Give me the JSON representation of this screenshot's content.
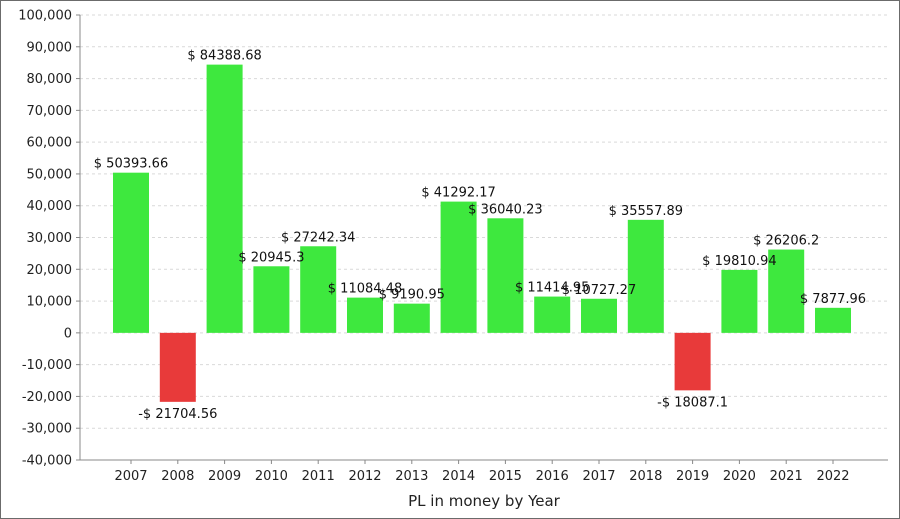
{
  "chart_data": {
    "type": "bar",
    "title": "",
    "xlabel": "PL in money by Year",
    "ylabel": "",
    "ylim": [
      -40000,
      100000
    ],
    "yticks": [
      -40000,
      -30000,
      -20000,
      -10000,
      0,
      10000,
      20000,
      30000,
      40000,
      50000,
      60000,
      70000,
      80000,
      90000,
      100000
    ],
    "ytick_labels": [
      "-40,000",
      "-30,000",
      "-20,000",
      "-10,000",
      "0",
      "10,000",
      "20,000",
      "30,000",
      "40,000",
      "50,000",
      "60,000",
      "70,000",
      "80,000",
      "90,000",
      "100,000"
    ],
    "categories": [
      "2007",
      "2008",
      "2009",
      "2010",
      "2011",
      "2012",
      "2013",
      "2014",
      "2015",
      "2016",
      "2017",
      "2018",
      "2019",
      "2020",
      "2021",
      "2022"
    ],
    "values": [
      50393.66,
      -21704.56,
      84388.68,
      20945.3,
      27242.34,
      11084.48,
      9190.95,
      41292.17,
      36040.23,
      11414.95,
      10727.27,
      35557.89,
      -18087.1,
      19810.94,
      26206.2,
      7877.96
    ],
    "data_labels": [
      "$ 50393.66",
      "-$ 21704.56",
      "$ 84388.68",
      "$ 20945.3",
      "$ 27242.34",
      "$ 11084.48",
      "$ 9190.95",
      "$ 41292.17",
      "$ 36040.23",
      "$ 11414.95",
      "$ 10727.27",
      "$ 35557.89",
      "-$ 18087.1",
      "$ 19810.94",
      "$ 26206.2",
      "$ 7877.96"
    ],
    "grid": true,
    "colors": {
      "positive": "#3ee83e",
      "negative": "#e83a3a"
    }
  }
}
